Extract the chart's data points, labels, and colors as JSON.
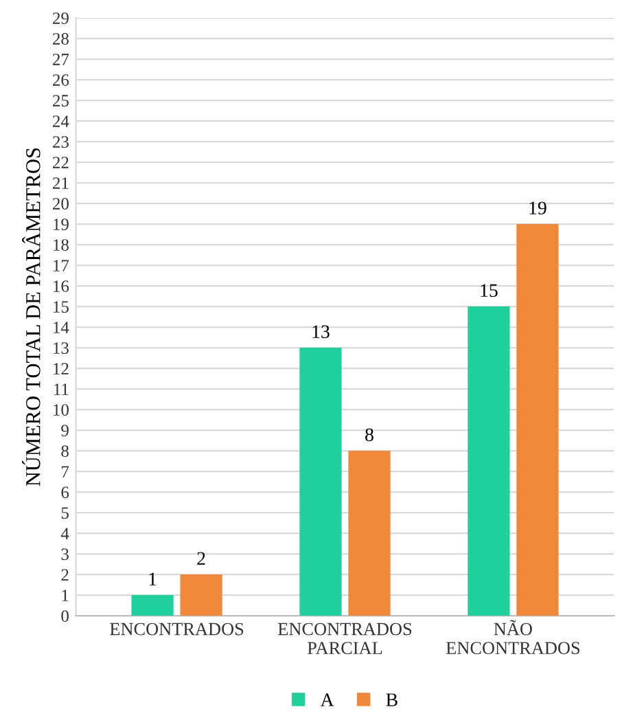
{
  "chart_data": {
    "type": "bar",
    "ylabel": "NÚMERO TOTAL DE PARÂMETROS",
    "categories": [
      "ENCONTRADOS",
      "ENCONTRADOS\nPARCIAL",
      "NÃO\nENCONTRADOS"
    ],
    "series": [
      {
        "name": "A",
        "color": "#1fcf9c",
        "values": [
          1,
          13,
          15
        ]
      },
      {
        "name": "B",
        "color": "#f0883a",
        "values": [
          2,
          8,
          19
        ]
      }
    ],
    "ylim": [
      0,
      29
    ],
    "yticks": [
      0,
      1,
      2,
      3,
      4,
      5,
      6,
      7,
      8,
      9,
      10,
      11,
      12,
      13,
      14,
      15,
      16,
      17,
      18,
      19,
      20,
      21,
      22,
      23,
      24,
      25,
      26,
      27,
      28,
      29
    ],
    "grid": "y",
    "legend": "bottom",
    "data_labels": true
  }
}
